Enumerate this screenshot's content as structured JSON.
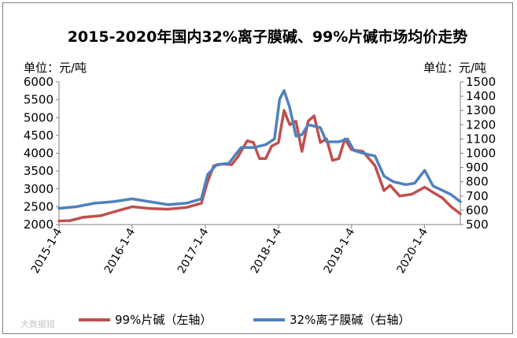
{
  "chart_data": {
    "type": "line",
    "title": "2015-2020年国内32%离子膜碱、99%片碱市场均价走势",
    "left_unit": "单位：元/吨",
    "right_unit": "单位：元/吨",
    "left_axis": {
      "min": 2000,
      "max": 6000,
      "step": 500
    },
    "right_axis": {
      "min": 500,
      "max": 1500,
      "step": 100
    },
    "x_tick_labels": [
      "2015-1-4",
      "2016-1-4",
      "2017-1-4",
      "2018-1-4",
      "2019-1-4",
      "2020-1-4"
    ],
    "x_range": [
      "2015-01-04",
      "2020-06-30"
    ],
    "grid": false,
    "legend_position": "bottom",
    "series": [
      {
        "name": "99%片碱（左轴）",
        "axis": "left",
        "color": "#c0504d",
        "points": [
          [
            "2015-01-04",
            2100
          ],
          [
            "2015-03-01",
            2110
          ],
          [
            "2015-05-01",
            2200
          ],
          [
            "2015-08-01",
            2250
          ],
          [
            "2015-11-01",
            2400
          ],
          [
            "2016-01-04",
            2500
          ],
          [
            "2016-04-01",
            2450
          ],
          [
            "2016-07-01",
            2430
          ],
          [
            "2016-10-01",
            2480
          ],
          [
            "2016-12-15",
            2600
          ],
          [
            "2017-01-15",
            3200
          ],
          [
            "2017-02-15",
            3650
          ],
          [
            "2017-04-01",
            3700
          ],
          [
            "2017-05-15",
            3680
          ],
          [
            "2017-06-15",
            3900
          ],
          [
            "2017-08-01",
            4350
          ],
          [
            "2017-09-01",
            4300
          ],
          [
            "2017-10-01",
            3850
          ],
          [
            "2017-11-01",
            3850
          ],
          [
            "2017-12-01",
            4200
          ],
          [
            "2018-01-04",
            4300
          ],
          [
            "2018-02-01",
            5200
          ],
          [
            "2018-03-01",
            4800
          ],
          [
            "2018-04-01",
            4900
          ],
          [
            "2018-05-01",
            4050
          ],
          [
            "2018-06-01",
            4900
          ],
          [
            "2018-07-01",
            5050
          ],
          [
            "2018-08-01",
            4300
          ],
          [
            "2018-09-01",
            4400
          ],
          [
            "2018-10-01",
            3800
          ],
          [
            "2018-11-01",
            3850
          ],
          [
            "2018-12-01",
            4400
          ],
          [
            "2019-01-04",
            4100
          ],
          [
            "2019-03-01",
            4050
          ],
          [
            "2019-05-01",
            3650
          ],
          [
            "2019-06-15",
            2950
          ],
          [
            "2019-07-15",
            3100
          ],
          [
            "2019-09-01",
            2800
          ],
          [
            "2019-11-01",
            2850
          ],
          [
            "2020-01-04",
            3050
          ],
          [
            "2020-02-15",
            2900
          ],
          [
            "2020-04-01",
            2750
          ],
          [
            "2020-05-15",
            2500
          ],
          [
            "2020-06-30",
            2300
          ]
        ]
      },
      {
        "name": "32%离子膜碱（右轴）",
        "axis": "right",
        "color": "#4f81bd",
        "points": [
          [
            "2015-01-04",
            613
          ],
          [
            "2015-04-01",
            625
          ],
          [
            "2015-07-01",
            650
          ],
          [
            "2015-10-01",
            660
          ],
          [
            "2016-01-04",
            680
          ],
          [
            "2016-04-01",
            660
          ],
          [
            "2016-07-01",
            640
          ],
          [
            "2016-10-01",
            650
          ],
          [
            "2016-12-15",
            680
          ],
          [
            "2017-01-15",
            850
          ],
          [
            "2017-03-01",
            920
          ],
          [
            "2017-05-01",
            930
          ],
          [
            "2017-07-01",
            1040
          ],
          [
            "2017-09-01",
            1040
          ],
          [
            "2017-11-01",
            1060
          ],
          [
            "2017-12-15",
            1100
          ],
          [
            "2018-01-10",
            1380
          ],
          [
            "2018-02-01",
            1440
          ],
          [
            "2018-03-01",
            1320
          ],
          [
            "2018-04-01",
            1120
          ],
          [
            "2018-05-01",
            1130
          ],
          [
            "2018-06-01",
            1200
          ],
          [
            "2018-08-01",
            1180
          ],
          [
            "2018-09-01",
            1080
          ],
          [
            "2018-11-01",
            1080
          ],
          [
            "2018-12-15",
            1100
          ],
          [
            "2019-01-15",
            1020
          ],
          [
            "2019-03-01",
            1000
          ],
          [
            "2019-05-01",
            980
          ],
          [
            "2019-06-15",
            840
          ],
          [
            "2019-08-01",
            800
          ],
          [
            "2019-10-01",
            780
          ],
          [
            "2019-11-15",
            790
          ],
          [
            "2020-01-04",
            880
          ],
          [
            "2020-02-15",
            770
          ],
          [
            "2020-04-01",
            740
          ],
          [
            "2020-05-15",
            710
          ],
          [
            "2020-06-30",
            660
          ]
        ]
      }
    ]
  },
  "watermark": "大数据猎"
}
